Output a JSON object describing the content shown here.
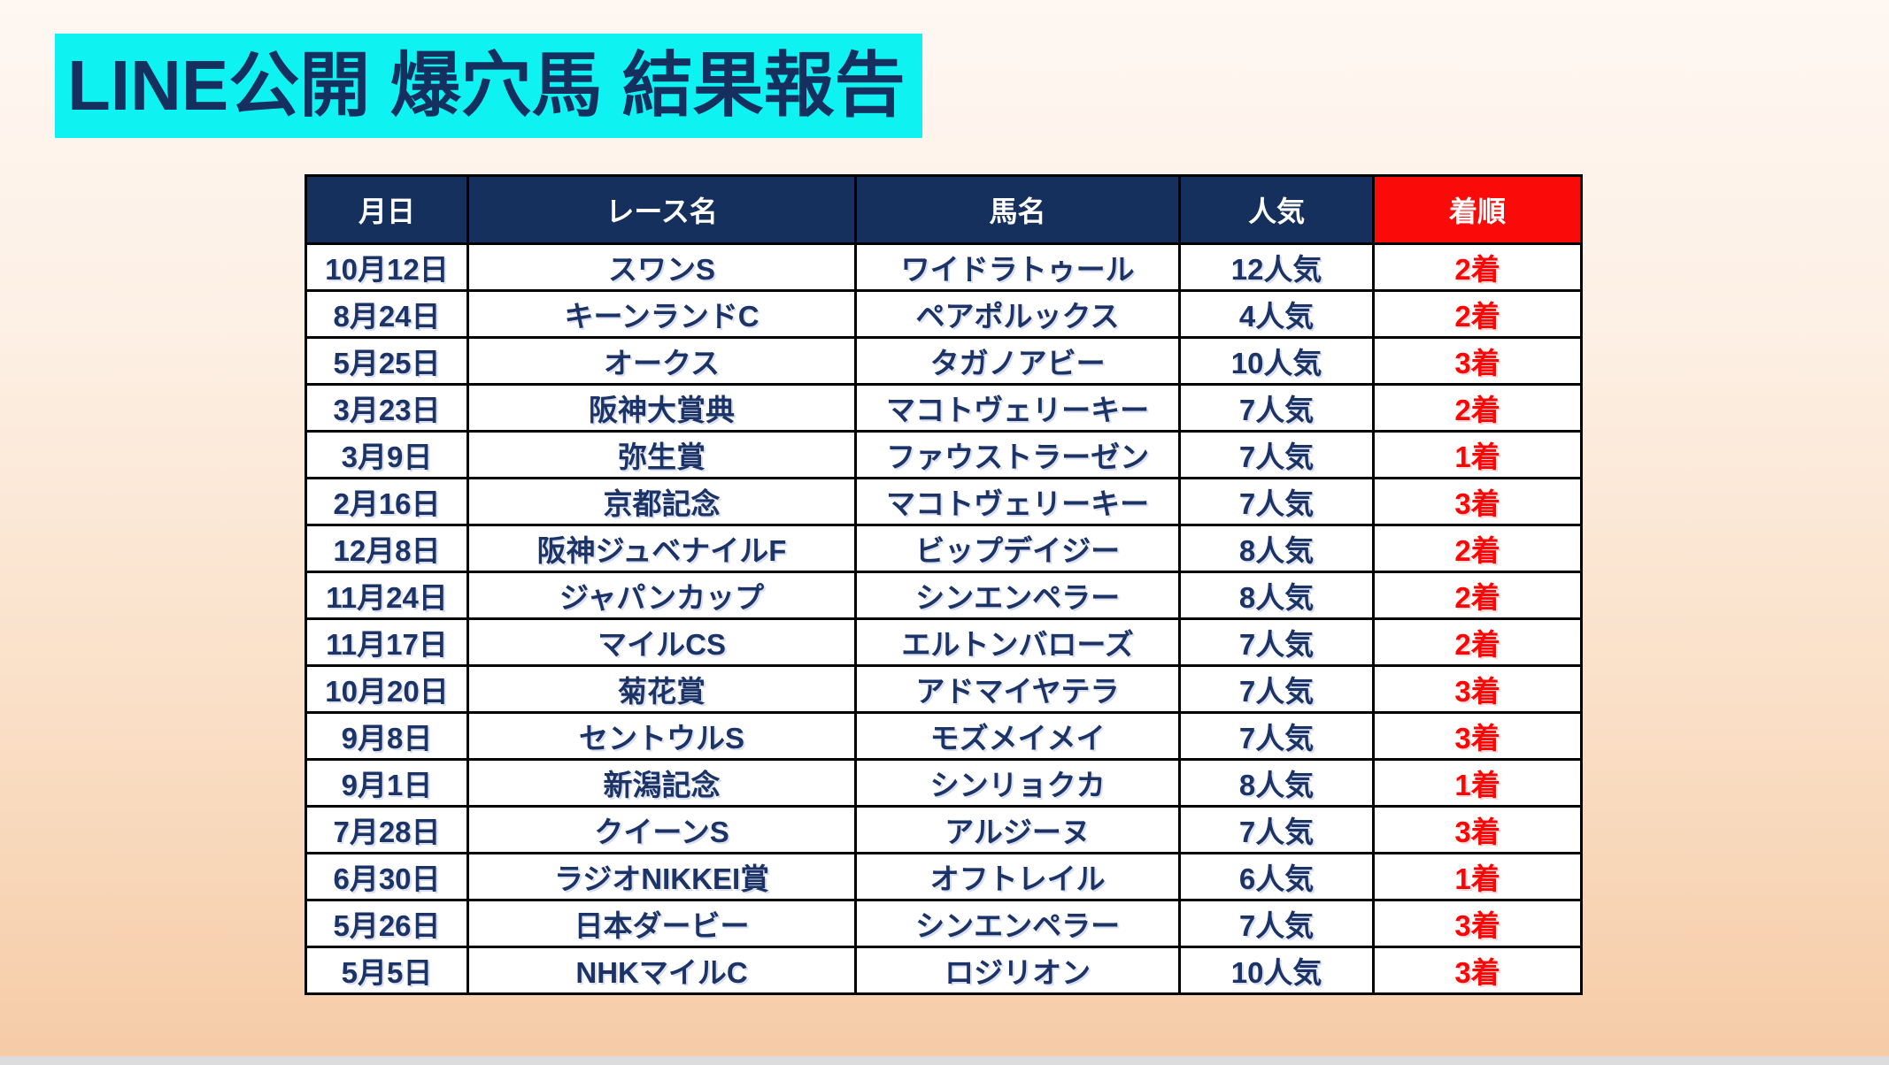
{
  "title": "LINE公開 爆穴馬 結果報告",
  "colors": {
    "title_bg": "#0ef2f2",
    "title_text": "#15305f",
    "header_bg": "#16305e",
    "header_text": "#ffffff",
    "result_header_bg": "#fb0a0a",
    "cell_text": "#1b3365",
    "result_text": "#fb0505",
    "border": "#000000",
    "page_bg_top": "#fef7f2",
    "page_bg_bottom": "#f6cba6",
    "window_edge": "#dcdcde"
  },
  "table": {
    "columns": [
      "月日",
      "レース名",
      "馬名",
      "人気",
      "着順"
    ],
    "rows": [
      {
        "date": "10月12日",
        "race": "スワンS",
        "horse": "ワイドラトゥール",
        "popularity": "12人気",
        "result": "2着"
      },
      {
        "date": "8月24日",
        "race": "キーンランドC",
        "horse": "ペアポルックス",
        "popularity": "4人気",
        "result": "2着"
      },
      {
        "date": "5月25日",
        "race": "オークス",
        "horse": "タガノアビー",
        "popularity": "10人気",
        "result": "3着"
      },
      {
        "date": "3月23日",
        "race": "阪神大賞典",
        "horse": "マコトヴェリーキー",
        "popularity": "7人気",
        "result": "2着"
      },
      {
        "date": "3月9日",
        "race": "弥生賞",
        "horse": "ファウストラーゼン",
        "popularity": "7人気",
        "result": "1着"
      },
      {
        "date": "2月16日",
        "race": "京都記念",
        "horse": "マコトヴェリーキー",
        "popularity": "7人気",
        "result": "3着"
      },
      {
        "date": "12月8日",
        "race": "阪神ジュベナイルF",
        "horse": "ビップデイジー",
        "popularity": "8人気",
        "result": "2着"
      },
      {
        "date": "11月24日",
        "race": "ジャパンカップ",
        "horse": "シンエンペラー",
        "popularity": "8人気",
        "result": "2着"
      },
      {
        "date": "11月17日",
        "race": "マイルCS",
        "horse": "エルトンバローズ",
        "popularity": "7人気",
        "result": "2着"
      },
      {
        "date": "10月20日",
        "race": "菊花賞",
        "horse": "アドマイヤテラ",
        "popularity": "7人気",
        "result": "3着"
      },
      {
        "date": "9月8日",
        "race": "セントウルS",
        "horse": "モズメイメイ",
        "popularity": "7人気",
        "result": "3着"
      },
      {
        "date": "9月1日",
        "race": "新潟記念",
        "horse": "シンリョクカ",
        "popularity": "8人気",
        "result": "1着"
      },
      {
        "date": "7月28日",
        "race": "クイーンS",
        "horse": "アルジーヌ",
        "popularity": "7人気",
        "result": "3着"
      },
      {
        "date": "6月30日",
        "race": "ラジオNIKKEI賞",
        "horse": "オフトレイル",
        "popularity": "6人気",
        "result": "1着"
      },
      {
        "date": "5月26日",
        "race": "日本ダービー",
        "horse": "シンエンペラー",
        "popularity": "7人気",
        "result": "3着"
      },
      {
        "date": "5月5日",
        "race": "NHKマイルC",
        "horse": "ロジリオン",
        "popularity": "10人気",
        "result": "3着"
      }
    ]
  }
}
